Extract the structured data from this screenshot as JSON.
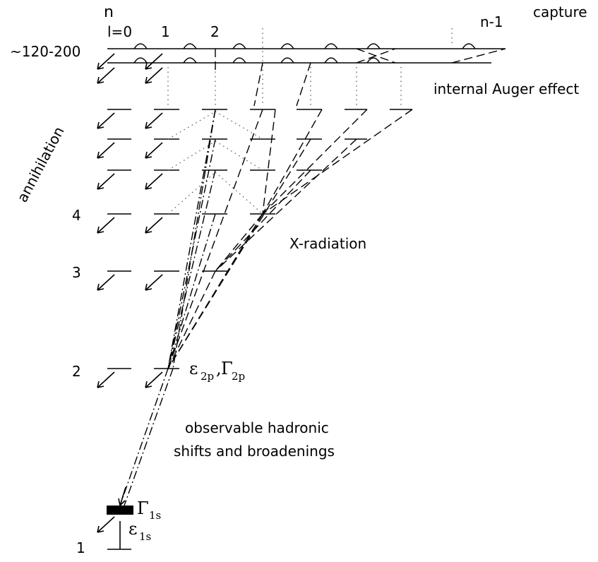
{
  "labels": {
    "n_header": "n",
    "l0": "l=0",
    "l1": "1",
    "l2": "2",
    "n_minus_1": "n-1",
    "capture": "capture",
    "n_range": "~120-200",
    "auger": "internal Auger effect",
    "annihilation": "annihilation",
    "xrad": "X-radiation",
    "n4": "4",
    "n3": "3",
    "n2": "2",
    "n1": "1",
    "hadronic_line1": "observable hadronic",
    "hadronic_line2": "shifts and broadenings",
    "eps_2p": "ε",
    "eps_2p_sub": "2p",
    "gamma_2p": "Γ",
    "gamma_2p_sub": "2p",
    "gamma_1s": "Γ",
    "gamma_1s_sub": "1s",
    "eps_1s": "ε",
    "eps_1s_sub": "1s"
  }
}
